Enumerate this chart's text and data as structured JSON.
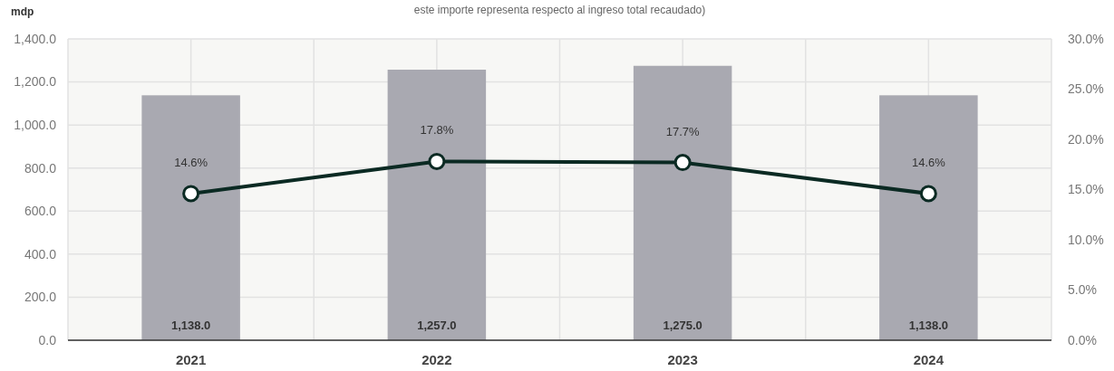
{
  "chart_data": {
    "type": "bar",
    "subtitle": "este importe representa respecto al ingreso total recaudado)",
    "ylabel": "mdp",
    "categories": [
      "2021",
      "2022",
      "2023",
      "2024"
    ],
    "series": [
      {
        "color": "#a9a9b1",
        "values": [
          1138.0,
          1257.0,
          1275.0,
          1138.0
        ],
        "value_labels": [
          "1,138.0",
          "1,257.0",
          "1,275.0",
          "1,138.0"
        ]
      },
      {
        "type": "line",
        "axis": "y2",
        "color": "#0b2a23",
        "values": [
          14.6,
          17.8,
          17.7,
          14.6
        ],
        "value_labels": [
          "14.6%",
          "17.8%",
          "17.7%",
          "14.6%"
        ]
      }
    ],
    "ylim": [
      0,
      1400
    ],
    "yticks": [
      {
        "value": 0,
        "label": "0.0"
      },
      {
        "value": 200,
        "label": "200.0"
      },
      {
        "value": 400,
        "label": "400.0"
      },
      {
        "value": 600,
        "label": "600.0"
      },
      {
        "value": 800,
        "label": "800.0"
      },
      {
        "value": 1000,
        "label": "1,000.0"
      },
      {
        "value": 1200,
        "label": "1,200.0"
      },
      {
        "value": 1400,
        "label": "1,400.0"
      }
    ],
    "y2lim": [
      0,
      30
    ],
    "y2ticks": [
      {
        "value": 0,
        "label": "0.0%"
      },
      {
        "value": 5,
        "label": "5.0%"
      },
      {
        "value": 10,
        "label": "10.0%"
      },
      {
        "value": 15,
        "label": "15.0%"
      },
      {
        "value": 20,
        "label": "20.0%"
      },
      {
        "value": 25,
        "label": "25.0%"
      },
      {
        "value": 30,
        "label": "30.0%"
      }
    ],
    "grid": true,
    "marker": "circle",
    "line_style": "solid"
  }
}
